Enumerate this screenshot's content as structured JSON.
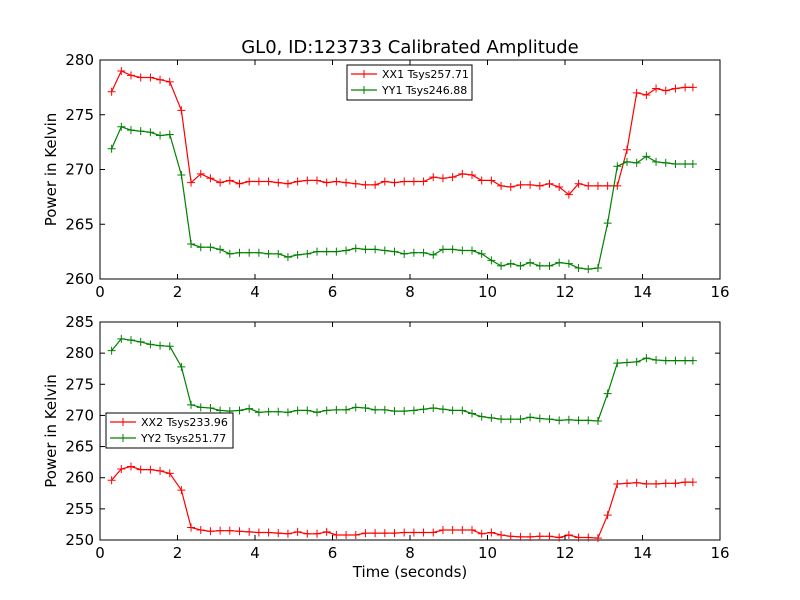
{
  "title": "GL0, ID:123733 Calibrated Amplitude",
  "colors": {
    "red": "#ff0000",
    "green": "#008000",
    "axis": "#000000",
    "background": "#ffffff"
  },
  "chart_data": [
    {
      "type": "line",
      "title": "GL0, ID:123733 Calibrated Amplitude",
      "xlabel": "",
      "ylabel": "Power in Kelvin",
      "xlim": [
        0,
        16
      ],
      "ylim": [
        260,
        280
      ],
      "xticks": [
        "0",
        "2",
        "4",
        "6",
        "8",
        "10",
        "12",
        "14",
        "16"
      ],
      "yticks": [
        "260",
        "265",
        "270",
        "275",
        "280"
      ],
      "grid": false,
      "legend_position": "top-center",
      "x": [
        0.3,
        0.55,
        0.8,
        1.05,
        1.3,
        1.55,
        1.8,
        2.1,
        2.35,
        2.6,
        2.85,
        3.1,
        3.35,
        3.6,
        3.85,
        4.1,
        4.35,
        4.6,
        4.85,
        5.1,
        5.35,
        5.6,
        5.85,
        6.1,
        6.35,
        6.6,
        6.85,
        7.1,
        7.35,
        7.6,
        7.85,
        8.1,
        8.35,
        8.6,
        8.85,
        9.1,
        9.35,
        9.6,
        9.85,
        10.1,
        10.35,
        10.6,
        10.85,
        11.1,
        11.35,
        11.6,
        11.85,
        12.1,
        12.35,
        12.6,
        12.85,
        13.1,
        13.35,
        13.6,
        13.85,
        14.1,
        14.35,
        14.6,
        14.85,
        15.1,
        15.3
      ],
      "series": [
        {
          "name": "XX1 Tsys257.71",
          "color": "#ff0000",
          "values": [
            277.1,
            279.0,
            278.6,
            278.4,
            278.4,
            278.2,
            278.0,
            275.4,
            268.8,
            269.6,
            269.2,
            268.8,
            269.0,
            268.7,
            268.9,
            268.9,
            268.9,
            268.8,
            268.7,
            268.9,
            269.0,
            269.0,
            268.8,
            268.9,
            268.8,
            268.7,
            268.6,
            268.6,
            268.9,
            268.8,
            268.9,
            268.9,
            268.9,
            269.3,
            269.2,
            269.3,
            269.6,
            269.5,
            269.0,
            269.0,
            268.5,
            268.4,
            268.6,
            268.6,
            268.5,
            268.7,
            268.4,
            267.7,
            268.7,
            268.5,
            268.5,
            268.5,
            268.5,
            271.8,
            277.0,
            276.8,
            277.4,
            277.2,
            277.4,
            277.5,
            277.5
          ]
        },
        {
          "name": "YY1 Tsys246.88",
          "color": "#008000",
          "values": [
            271.9,
            273.9,
            273.6,
            273.5,
            273.4,
            273.1,
            273.2,
            269.5,
            263.2,
            262.9,
            262.9,
            262.7,
            262.3,
            262.4,
            262.4,
            262.4,
            262.3,
            262.3,
            262.0,
            262.2,
            262.3,
            262.5,
            262.5,
            262.5,
            262.6,
            262.8,
            262.7,
            262.7,
            262.6,
            262.5,
            262.3,
            262.4,
            262.4,
            262.2,
            262.7,
            262.7,
            262.6,
            262.6,
            262.3,
            261.7,
            261.2,
            261.4,
            261.2,
            261.5,
            261.2,
            261.2,
            261.5,
            261.4,
            261.0,
            260.9,
            261.0,
            265.1,
            270.3,
            270.7,
            270.6,
            271.2,
            270.7,
            270.6,
            270.5,
            270.5,
            270.5
          ]
        }
      ]
    },
    {
      "type": "line",
      "title": "",
      "xlabel": "Time (seconds)",
      "ylabel": "Power in Kelvin",
      "xlim": [
        0,
        16
      ],
      "ylim": [
        250,
        285
      ],
      "xticks": [
        "0",
        "2",
        "4",
        "6",
        "8",
        "10",
        "12",
        "14",
        "16"
      ],
      "yticks": [
        "250",
        "255",
        "260",
        "265",
        "270",
        "275",
        "280",
        "285"
      ],
      "grid": false,
      "legend_position": "center-left",
      "x": [
        0.3,
        0.55,
        0.8,
        1.05,
        1.3,
        1.55,
        1.8,
        2.1,
        2.35,
        2.6,
        2.85,
        3.1,
        3.35,
        3.6,
        3.85,
        4.1,
        4.35,
        4.6,
        4.85,
        5.1,
        5.35,
        5.6,
        5.85,
        6.1,
        6.35,
        6.6,
        6.85,
        7.1,
        7.35,
        7.6,
        7.85,
        8.1,
        8.35,
        8.6,
        8.85,
        9.1,
        9.35,
        9.6,
        9.85,
        10.1,
        10.35,
        10.6,
        10.85,
        11.1,
        11.35,
        11.6,
        11.85,
        12.1,
        12.35,
        12.6,
        12.85,
        13.1,
        13.35,
        13.6,
        13.85,
        14.1,
        14.35,
        14.6,
        14.85,
        15.1,
        15.3
      ],
      "series": [
        {
          "name": "XX2 Tsys233.96",
          "color": "#ff0000",
          "values": [
            259.6,
            261.4,
            261.8,
            261.3,
            261.3,
            261.1,
            260.7,
            258.0,
            252.0,
            251.6,
            251.4,
            251.5,
            251.5,
            251.4,
            251.3,
            251.2,
            251.2,
            251.1,
            251.0,
            251.3,
            251.0,
            251.0,
            251.3,
            250.8,
            250.8,
            250.8,
            251.1,
            251.1,
            251.1,
            251.1,
            251.2,
            251.2,
            251.2,
            251.2,
            251.6,
            251.6,
            251.6,
            251.6,
            251.0,
            251.2,
            250.8,
            250.6,
            250.5,
            250.5,
            250.6,
            250.6,
            250.4,
            250.8,
            250.4,
            250.4,
            250.3,
            254.0,
            259.0,
            259.1,
            259.2,
            259.0,
            259.0,
            259.1,
            259.1,
            259.3,
            259.3
          ]
        },
        {
          "name": "YY2 Tsys251.77",
          "color": "#008000",
          "values": [
            280.4,
            282.3,
            282.1,
            281.8,
            281.4,
            281.2,
            281.1,
            277.8,
            271.7,
            271.3,
            271.2,
            270.8,
            270.7,
            270.8,
            271.1,
            270.5,
            270.6,
            270.6,
            270.5,
            270.8,
            270.8,
            270.5,
            270.8,
            270.9,
            270.9,
            271.3,
            271.2,
            270.9,
            270.9,
            270.7,
            270.7,
            270.8,
            271.0,
            271.2,
            271.0,
            270.8,
            270.8,
            270.3,
            269.8,
            269.6,
            269.4,
            269.4,
            269.4,
            269.7,
            269.5,
            269.4,
            269.2,
            269.3,
            269.2,
            269.2,
            269.1,
            273.5,
            278.4,
            278.5,
            278.6,
            279.2,
            278.9,
            278.8,
            278.8,
            278.8,
            278.8
          ]
        }
      ]
    }
  ]
}
